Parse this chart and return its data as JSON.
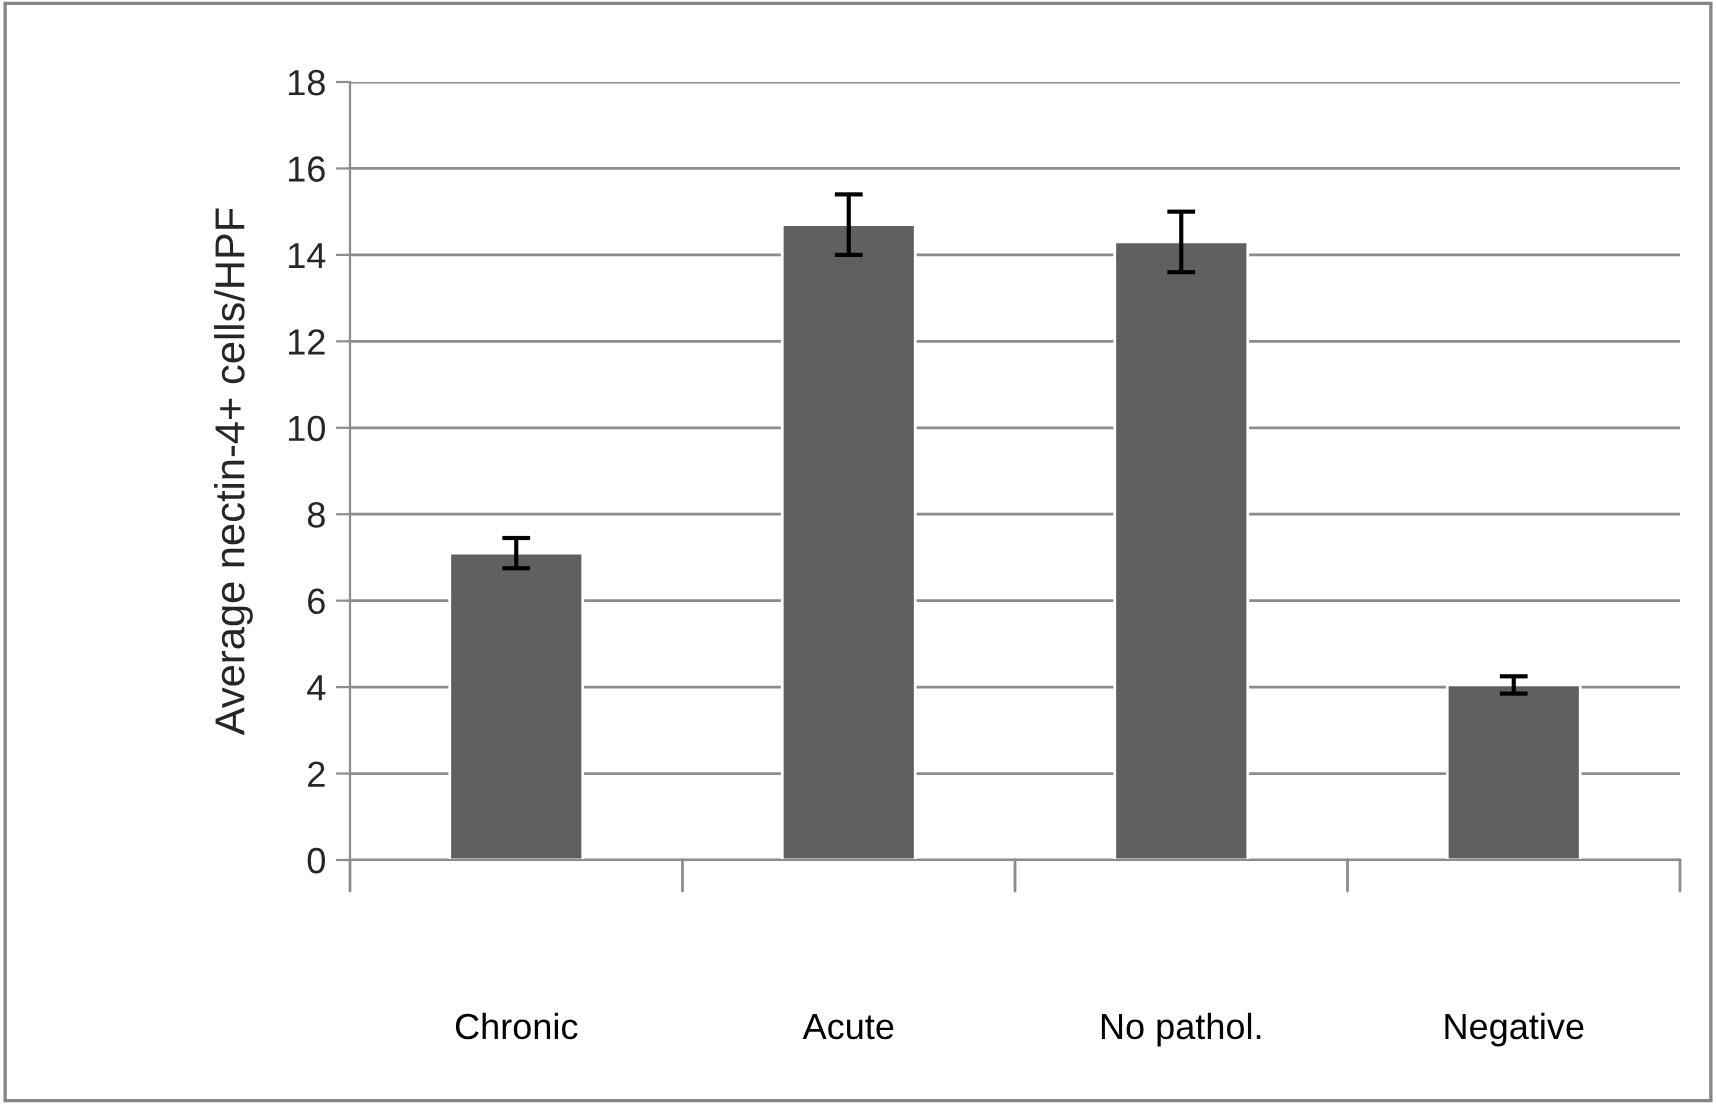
{
  "chart_data": {
    "type": "bar",
    "ylabel": "Average nectin-4+ cells/HPF",
    "categories": [
      "Chronic",
      "Acute",
      "No pathol.",
      "Negative"
    ],
    "values": [
      7.1,
      14.7,
      14.3,
      4.05
    ],
    "errors": [
      0.35,
      0.7,
      0.7,
      0.2
    ],
    "color": "#606060",
    "ylim": [
      0,
      18
    ],
    "yticks": [
      0,
      2,
      4,
      6,
      8,
      10,
      12,
      14,
      16,
      18
    ],
    "grid": "y",
    "legend": false
  }
}
